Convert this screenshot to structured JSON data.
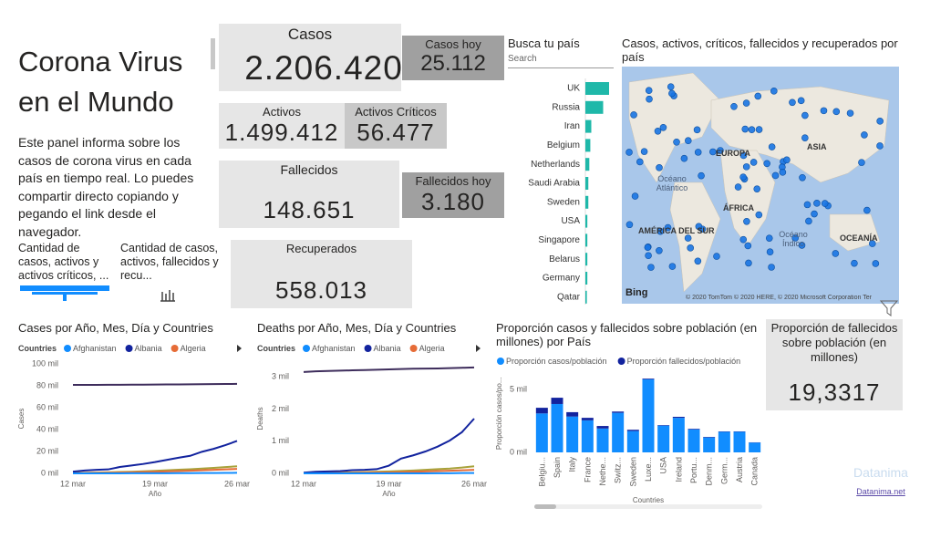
{
  "header": {
    "title": "Corona Virus en el Mundo",
    "description": "Este panel informa sobre los casos de corona virus en cada país en tiempo real. Lo puedes compartir directo copiando y pegando el link desde el navegador."
  },
  "slicers": [
    "Cantidad de casos, activos y activos críticos, ...",
    "Cantidad de casos, activos, fallecidos y recu..."
  ],
  "cards": [
    {
      "label": "Casos",
      "value": "2.206.420"
    },
    {
      "label": "Casos hoy",
      "value": "25.112"
    },
    {
      "label": "Activos",
      "value": "1.499.412"
    },
    {
      "label": "Activos Críticos",
      "value": "56.477"
    },
    {
      "label": "Fallecidos",
      "value": "148.651"
    },
    {
      "label": "Fallecidos hoy",
      "value": "3.180"
    },
    {
      "label": "Recuperados",
      "value": "558.013"
    },
    {
      "label": "Proporción de fallecidos sobre población (en millones)",
      "value": "19,3317"
    }
  ],
  "search": {
    "title": "Busca tu país",
    "placeholder": "Search"
  },
  "map": {
    "title": "Casos, activos, críticos, fallecidos y recuperados por país",
    "labels": [
      "EUROPA",
      "ASIA",
      "Océano Atlántico",
      "AMÉRICA DEL SUR",
      "ÁFRICA",
      "Océano Índico",
      "OCEANÍA"
    ],
    "logo": "Bing",
    "credits": "© 2020 TomTom © 2020 HERE, © 2020 Microsoft Corporation  Ter"
  },
  "brand": {
    "name": "Datanima",
    "link": "Datanima.net"
  },
  "chart_data": [
    {
      "type": "hbar",
      "categories": [
        "UK",
        "Russia",
        "Iran",
        "Belgium",
        "Netherlands",
        "Saudi Arabia",
        "Sweden",
        "USA",
        "Singapore",
        "Belarus",
        "Germany",
        "Qatar"
      ],
      "values": [
        24,
        18,
        6,
        5,
        4,
        3,
        3,
        2,
        2,
        2,
        2,
        1.5
      ],
      "color": "#1fb8a9"
    },
    {
      "type": "line",
      "title": "Cases por Año, Mes, Día y Countries",
      "legend_title": "Countries",
      "xlabel": "Año",
      "ylabel": "Cases",
      "categories": [
        "12 mar",
        null,
        null,
        null,
        null,
        null,
        null,
        "19 mar",
        null,
        null,
        null,
        null,
        null,
        null,
        "26 mar"
      ],
      "ylim": [
        0,
        100000
      ],
      "yticks": [
        {
          "value": 0,
          "label": "0 mil"
        },
        {
          "value": 20000,
          "label": "20 mil"
        },
        {
          "value": 40000,
          "label": "40 mil"
        },
        {
          "value": 60000,
          "label": "60 mil"
        },
        {
          "value": 80000,
          "label": "80 mil"
        },
        {
          "value": 100000,
          "label": "100 mil"
        }
      ],
      "series": [
        {
          "name": "Afghanistan",
          "color": "#118dff",
          "values": [
            0,
            0,
            0,
            0,
            0,
            100,
            100,
            100,
            100,
            200,
            200,
            300,
            300,
            400,
            500
          ]
        },
        {
          "name": "Albania",
          "color": "#12239e",
          "values": [
            1600,
            2600,
            3200,
            3600,
            5800,
            7200,
            8600,
            10300,
            12300,
            14300,
            16000,
            19700,
            22400,
            25800,
            29600
          ]
        },
        {
          "name": "Algeria",
          "color": "#e66c37",
          "values": [
            200,
            300,
            400,
            500,
            700,
            900,
            1200,
            1500,
            1800,
            2100,
            2400,
            2800,
            3200,
            3600,
            4100
          ]
        },
        {
          "color": "#3e2d5c",
          "values": [
            80800,
            80800,
            80850,
            80900,
            80950,
            81000,
            81050,
            81100,
            81200,
            81250,
            81350,
            81450,
            81550,
            81650,
            81750
          ]
        },
        {
          "color": "#a7a23a",
          "values": [
            300,
            500,
            700,
            900,
            1200,
            1500,
            1900,
            2300,
            2800,
            3300,
            3800,
            4400,
            5000,
            5700,
            6500
          ]
        }
      ]
    },
    {
      "type": "line",
      "title": "Deaths por Año, Mes, Día y Countries",
      "legend_title": "Countries",
      "xlabel": "Año",
      "ylabel": "Deaths",
      "categories": [
        "12 mar",
        null,
        null,
        null,
        null,
        null,
        null,
        "19 mar",
        null,
        null,
        null,
        null,
        null,
        null,
        "26 mar"
      ],
      "ylim": [
        0,
        3400
      ],
      "yticks": [
        {
          "value": 0,
          "label": "0 mil"
        },
        {
          "value": 1000,
          "label": "1 mil"
        },
        {
          "value": 2000,
          "label": "2 mil"
        },
        {
          "value": 3000,
          "label": "3 mil"
        }
      ],
      "series": [
        {
          "name": "Afghanistan",
          "color": "#118dff",
          "values": [
            0,
            0,
            0,
            0,
            0,
            0,
            0,
            0,
            0,
            0,
            0,
            5,
            5,
            10,
            10
          ]
        },
        {
          "name": "Albania",
          "color": "#12239e",
          "values": [
            20,
            50,
            60,
            70,
            100,
            110,
            130,
            240,
            460,
            560,
            680,
            830,
            1020,
            1280,
            1700
          ]
        },
        {
          "name": "Algeria",
          "color": "#e66c37",
          "values": [
            5,
            8,
            10,
            12,
            15,
            20,
            25,
            30,
            40,
            50,
            60,
            70,
            80,
            95,
            110
          ]
        },
        {
          "color": "#3e2d5c",
          "values": [
            3150,
            3170,
            3180,
            3190,
            3200,
            3210,
            3220,
            3230,
            3240,
            3250,
            3255,
            3260,
            3270,
            3280,
            3290
          ]
        },
        {
          "color": "#a7a23a",
          "values": [
            10,
            15,
            20,
            25,
            30,
            40,
            50,
            60,
            75,
            90,
            110,
            130,
            150,
            180,
            220
          ]
        }
      ]
    },
    {
      "type": "stacked_bar",
      "title": "Proporción casos y fallecidos sobre población (en millones) por País",
      "xlabel": "Countries",
      "ylabel": "Proporción casos/po...",
      "categories": [
        "Belgiu...",
        "Spain",
        "Italy",
        "France",
        "Nethe...",
        "Switz...",
        "Sweden",
        "Luxe...",
        "USA",
        "Ireland",
        "Portu...",
        "Denm...",
        "Germ...",
        "Austria",
        "Canada"
      ],
      "ylim": [
        0,
        6200
      ],
      "yticks": [
        {
          "value": 0,
          "label": "0 mil"
        },
        {
          "value": 5000,
          "label": "5 mil"
        }
      ],
      "series": [
        {
          "name": "Proporción casos/población",
          "color": "#118dff",
          "values": [
            3100,
            3850,
            2850,
            2550,
            1900,
            3150,
            1700,
            5810,
            2130,
            2750,
            1830,
            1190,
            1640,
            1640,
            780
          ]
        },
        {
          "name": "Proporción fallecidos/población",
          "color": "#12239e",
          "values": [
            450,
            500,
            350,
            200,
            200,
            100,
            100,
            60,
            40,
            80,
            50,
            40,
            30,
            30,
            20
          ]
        }
      ]
    }
  ]
}
